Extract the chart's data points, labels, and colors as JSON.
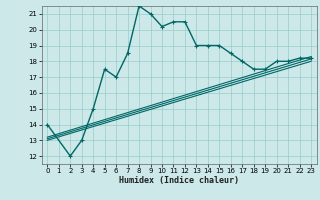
{
  "title": "",
  "xlabel": "Humidex (Indice chaleur)",
  "bg_color": "#cce8e8",
  "grid_color": "#99cccc",
  "line_color": "#006666",
  "xlim": [
    -0.5,
    23.5
  ],
  "ylim": [
    11.5,
    21.5
  ],
  "xticks": [
    0,
    1,
    2,
    3,
    4,
    5,
    6,
    7,
    8,
    9,
    10,
    11,
    12,
    13,
    14,
    15,
    16,
    17,
    18,
    19,
    20,
    21,
    22,
    23
  ],
  "yticks": [
    12,
    13,
    14,
    15,
    16,
    17,
    18,
    19,
    20,
    21
  ],
  "main_x": [
    0,
    2,
    3,
    4,
    5,
    6,
    7,
    8,
    9,
    10,
    11,
    12,
    13,
    14,
    15,
    16,
    17,
    18,
    19,
    20,
    21,
    22,
    23
  ],
  "main_y": [
    14,
    12,
    13,
    15,
    17.5,
    17,
    18.5,
    21.5,
    21,
    20.2,
    20.5,
    20.5,
    19,
    19,
    19,
    18.5,
    18,
    17.5,
    17.5,
    18,
    18,
    18.2,
    18.2
  ],
  "ref_lines": [
    {
      "x": [
        0,
        23
      ],
      "y": [
        13.0,
        18.0
      ]
    },
    {
      "x": [
        0,
        23
      ],
      "y": [
        13.1,
        18.15
      ]
    },
    {
      "x": [
        0,
        23
      ],
      "y": [
        13.2,
        18.3
      ]
    }
  ]
}
